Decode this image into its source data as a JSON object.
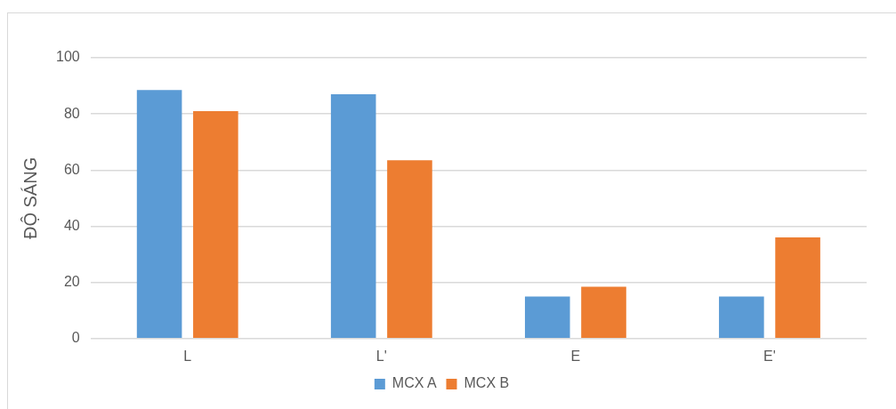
{
  "chart_data": {
    "type": "bar",
    "ylabel": "ĐỘ SÁNG",
    "categories": [
      "L",
      "L'",
      "E",
      "E'"
    ],
    "series": [
      {
        "name": "MCX A",
        "color": "#5b9bd5",
        "values": [
          88.5,
          87,
          15,
          15
        ]
      },
      {
        "name": "MCX B",
        "color": "#ed7d31",
        "values": [
          81,
          63.5,
          18.5,
          36
        ]
      }
    ],
    "ylim": [
      0,
      100
    ],
    "yticks": [
      0,
      20,
      40,
      60,
      80,
      100
    ],
    "grid": "y",
    "legend": "bottom"
  }
}
